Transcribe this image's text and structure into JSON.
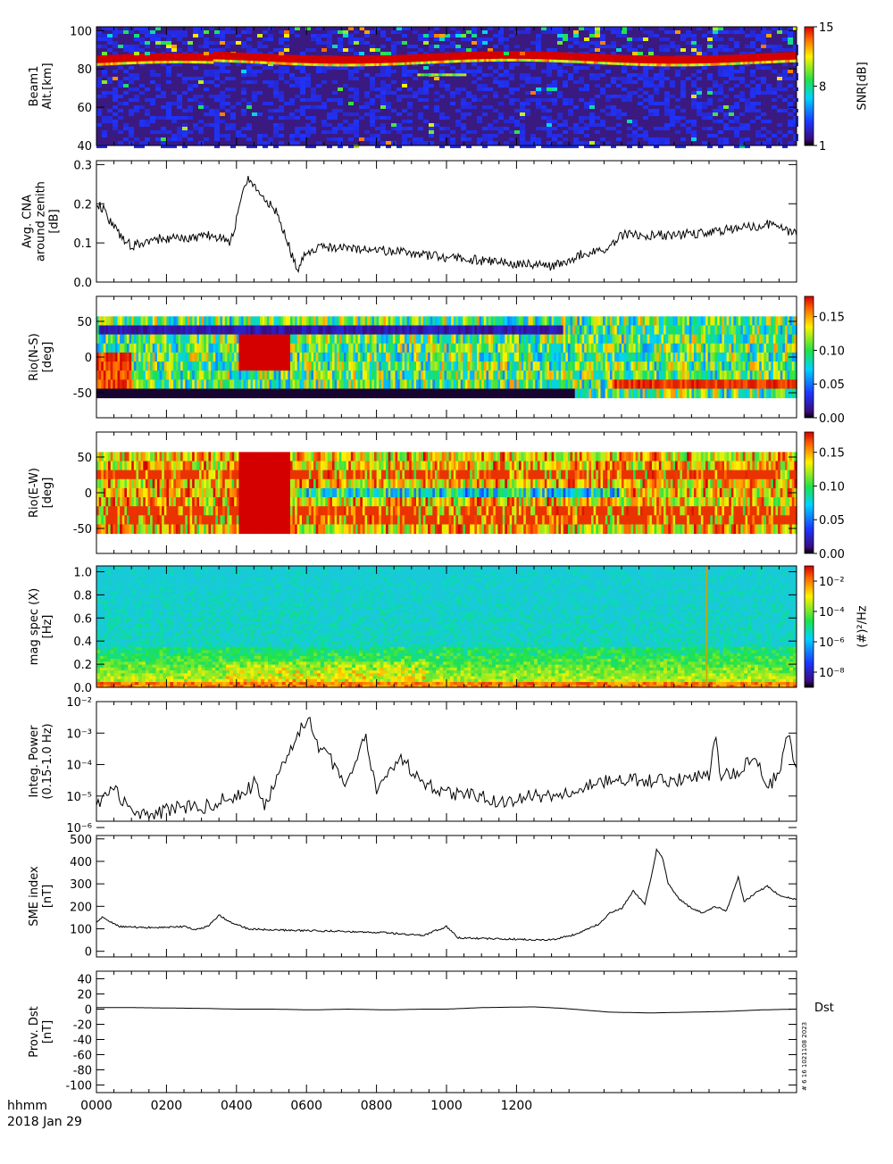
{
  "x_axis": {
    "ticks": [
      "0000",
      "0200",
      "0400",
      "0600",
      "0800",
      "1000",
      "1200"
    ],
    "label_line1": "hhmm",
    "label_line2": "2018 Jan 29"
  },
  "stamp": "# 6 16 1021108 2023",
  "chart_data": [
    {
      "type": "heatmap",
      "ylabel": [
        "Beam1",
        "Alt.[km]"
      ],
      "yticks": [
        40,
        60,
        80,
        100
      ],
      "ylim": [
        40,
        102
      ],
      "colorbar": {
        "label": "SNR[dB]",
        "ticks": [
          "1",
          "8",
          "15"
        ],
        "range": [
          1,
          15
        ]
      },
      "features": [
        {
          "desc": "persistent high-SNR layer",
          "alt_km": 86,
          "x_from": "0000",
          "x_to": "1200"
        },
        {
          "desc": "weak patch",
          "alt_km": 77,
          "x_from": "0550",
          "x_to": "0630"
        }
      ]
    },
    {
      "type": "line",
      "ylabel": [
        "Avg. CNA",
        "around zenith",
        "[dB]"
      ],
      "yticks": [
        "0.0",
        "0.1",
        "0.2",
        "0.3"
      ],
      "ylim": [
        0,
        0.31
      ],
      "points": [
        [
          0,
          0.2
        ],
        [
          10,
          0.19
        ],
        [
          30,
          0.14
        ],
        [
          60,
          0.09
        ],
        [
          100,
          0.11
        ],
        [
          140,
          0.11
        ],
        [
          200,
          0.12
        ],
        [
          230,
          0.1
        ],
        [
          250,
          0.22
        ],
        [
          260,
          0.27
        ],
        [
          280,
          0.22
        ],
        [
          310,
          0.18
        ],
        [
          330,
          0.09
        ],
        [
          345,
          0.03
        ],
        [
          360,
          0.08
        ],
        [
          400,
          0.09
        ],
        [
          500,
          0.08
        ],
        [
          560,
          0.07
        ],
        [
          620,
          0.06
        ],
        [
          700,
          0.05
        ],
        [
          780,
          0.04
        ],
        [
          830,
          0.07
        ],
        [
          870,
          0.08
        ],
        [
          900,
          0.12
        ],
        [
          960,
          0.12
        ],
        [
          1000,
          0.12
        ],
        [
          1060,
          0.13
        ],
        [
          1120,
          0.14
        ],
        [
          1160,
          0.15
        ],
        [
          1200,
          0.12
        ]
      ]
    },
    {
      "type": "heatmap",
      "ylabel": [
        "Rio(N-S)",
        "[deg]"
      ],
      "yticks": [
        -50,
        0,
        50
      ],
      "ylim": [
        -85,
        85
      ],
      "colorbar": {
        "label": "",
        "ticks": [
          "0.00",
          "0.05",
          "0.10",
          "0.15"
        ],
        "range": [
          0,
          0.18
        ]
      }
    },
    {
      "type": "heatmap",
      "ylabel": [
        "Rio(E-W)",
        "[deg]"
      ],
      "yticks": [
        -50,
        0,
        50
      ],
      "ylim": [
        -85,
        85
      ],
      "colorbar": {
        "label": "",
        "ticks": [
          "0.00",
          "0.05",
          "0.10",
          "0.15"
        ],
        "range": [
          0,
          0.18
        ]
      }
    },
    {
      "type": "heatmap",
      "ylabel": [
        "mag spec (X)",
        "[Hz]"
      ],
      "yticks": [
        "0.0",
        "0.2",
        "0.4",
        "0.6",
        "0.8",
        "1.0"
      ],
      "ylim": [
        0,
        1.05
      ],
      "colorbar": {
        "label": "(#)²/Hz",
        "ticks": [
          "10⁻⁸",
          "10⁻⁶",
          "10⁻⁴",
          "10⁻²"
        ],
        "range_log10": [
          -9,
          -1
        ]
      }
    },
    {
      "type": "line",
      "yscale": "log",
      "ylabel": [
        "Integ. Power",
        "(0.15-1.0 Hz)"
      ],
      "yticks": [
        "10⁻⁶",
        "10⁻⁵",
        "10⁻⁴",
        "10⁻³",
        "10⁻²"
      ],
      "ylim_log10": [
        -5.8,
        -2
      ],
      "points": [
        [
          0,
          -5.2
        ],
        [
          30,
          -4.8
        ],
        [
          60,
          -5.5
        ],
        [
          100,
          -5.6
        ],
        [
          140,
          -5.3
        ],
        [
          180,
          -5.4
        ],
        [
          220,
          -5.1
        ],
        [
          250,
          -5.0
        ],
        [
          270,
          -4.6
        ],
        [
          290,
          -5.3
        ],
        [
          310,
          -4.5
        ],
        [
          330,
          -3.6
        ],
        [
          350,
          -2.9
        ],
        [
          365,
          -2.4
        ],
        [
          380,
          -3.5
        ],
        [
          400,
          -3.8
        ],
        [
          430,
          -4.6
        ],
        [
          460,
          -3.0
        ],
        [
          480,
          -4.8
        ],
        [
          500,
          -4.3
        ],
        [
          520,
          -3.7
        ],
        [
          540,
          -4.2
        ],
        [
          570,
          -4.7
        ],
        [
          600,
          -4.9
        ],
        [
          650,
          -5.0
        ],
        [
          700,
          -5.2
        ],
        [
          750,
          -5.0
        ],
        [
          800,
          -4.9
        ],
        [
          850,
          -4.6
        ],
        [
          900,
          -4.5
        ],
        [
          950,
          -4.5
        ],
        [
          1000,
          -4.5
        ],
        [
          1050,
          -4.3
        ],
        [
          1060,
          -3.0
        ],
        [
          1070,
          -4.4
        ],
        [
          1100,
          -4.2
        ],
        [
          1130,
          -3.6
        ],
        [
          1150,
          -4.8
        ],
        [
          1170,
          -4.2
        ],
        [
          1185,
          -3.1
        ],
        [
          1200,
          -4.0
        ]
      ]
    },
    {
      "type": "line",
      "ylabel": [
        "SME index",
        "[nT]"
      ],
      "yticks": [
        0,
        100,
        200,
        300,
        400,
        500
      ],
      "ylim": [
        -25,
        515
      ],
      "points": [
        [
          0,
          130
        ],
        [
          10,
          150
        ],
        [
          40,
          110
        ],
        [
          100,
          105
        ],
        [
          150,
          110
        ],
        [
          170,
          95
        ],
        [
          190,
          110
        ],
        [
          210,
          160
        ],
        [
          230,
          130
        ],
        [
          260,
          100
        ],
        [
          300,
          95
        ],
        [
          400,
          90
        ],
        [
          480,
          85
        ],
        [
          560,
          70
        ],
        [
          600,
          110
        ],
        [
          620,
          60
        ],
        [
          700,
          55
        ],
        [
          780,
          50
        ],
        [
          820,
          75
        ],
        [
          860,
          120
        ],
        [
          880,
          170
        ],
        [
          900,
          190
        ],
        [
          920,
          270
        ],
        [
          940,
          210
        ],
        [
          950,
          320
        ],
        [
          960,
          450
        ],
        [
          970,
          420
        ],
        [
          980,
          300
        ],
        [
          1000,
          230
        ],
        [
          1020,
          190
        ],
        [
          1040,
          170
        ],
        [
          1060,
          200
        ],
        [
          1080,
          180
        ],
        [
          1100,
          330
        ],
        [
          1110,
          220
        ],
        [
          1130,
          260
        ],
        [
          1150,
          290
        ],
        [
          1170,
          250
        ],
        [
          1200,
          230
        ]
      ]
    },
    {
      "type": "line",
      "ylabel": [
        "Prov. Dst",
        "[nT]"
      ],
      "yticks": [
        -100,
        -80,
        -60,
        -40,
        -20,
        0,
        20,
        40
      ],
      "ylim": [
        -110,
        50
      ],
      "legend": "Dst",
      "points": [
        [
          0,
          2
        ],
        [
          60,
          2
        ],
        [
          180,
          1
        ],
        [
          240,
          0
        ],
        [
          300,
          0
        ],
        [
          370,
          -1
        ],
        [
          430,
          0
        ],
        [
          500,
          -1
        ],
        [
          560,
          0
        ],
        [
          600,
          0
        ],
        [
          660,
          2
        ],
        [
          750,
          3
        ],
        [
          800,
          1
        ],
        [
          880,
          -4
        ],
        [
          950,
          -5
        ],
        [
          1020,
          -4
        ],
        [
          1080,
          -3
        ],
        [
          1140,
          -1
        ],
        [
          1200,
          0
        ]
      ]
    }
  ]
}
